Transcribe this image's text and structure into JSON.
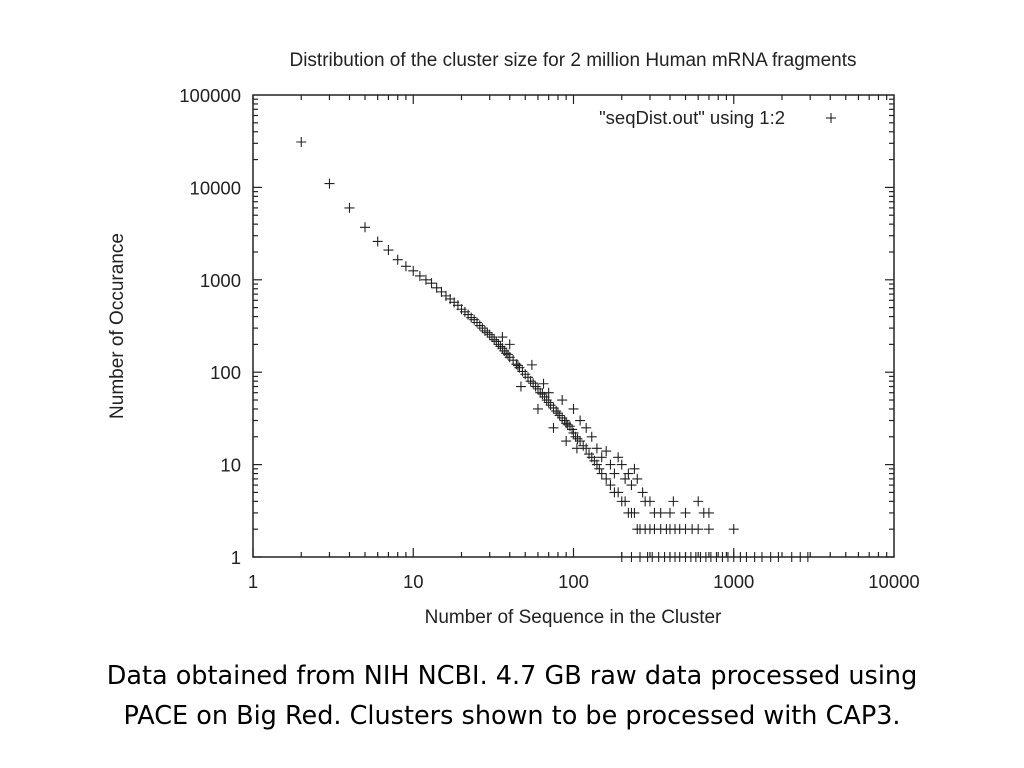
{
  "chart_data": {
    "type": "scatter",
    "title": "Distribution of the cluster size for 2 million Human mRNA fragments",
    "xlabel": "Number of Sequence in the Cluster",
    "ylabel": "Number of Occurance",
    "xscale": "log",
    "yscale": "log",
    "xlim": [
      1,
      10000
    ],
    "ylim": [
      1,
      100000
    ],
    "x_ticks": [
      "1",
      "10",
      "100",
      "1000",
      "10000"
    ],
    "y_ticks": [
      "1",
      "10",
      "100",
      "1000",
      "10000",
      "100000"
    ],
    "legend": "top-right",
    "grid": false,
    "marker": "+",
    "series": [
      {
        "name": "\"seqDist.out\" using 1:2",
        "points": [
          [
            2,
            31000
          ],
          [
            3,
            11000
          ],
          [
            4,
            6000
          ],
          [
            5,
            3700
          ],
          [
            6,
            2600
          ],
          [
            7,
            2100
          ],
          [
            8,
            1650
          ],
          [
            9,
            1400
          ],
          [
            10,
            1250
          ],
          [
            11,
            1100
          ],
          [
            12,
            1000
          ],
          [
            13,
            920
          ],
          [
            14,
            820
          ],
          [
            15,
            740
          ],
          [
            16,
            670
          ],
          [
            17,
            620
          ],
          [
            18,
            570
          ],
          [
            19,
            530
          ],
          [
            20,
            480
          ],
          [
            21,
            450
          ],
          [
            22,
            420
          ],
          [
            23,
            390
          ],
          [
            24,
            370
          ],
          [
            25,
            345
          ],
          [
            26,
            320
          ],
          [
            27,
            300
          ],
          [
            28,
            280
          ],
          [
            29,
            268
          ],
          [
            30,
            255
          ],
          [
            31,
            240
          ],
          [
            32,
            225
          ],
          [
            33,
            215
          ],
          [
            34,
            200
          ],
          [
            35,
            190
          ],
          [
            36,
            182
          ],
          [
            37,
            170
          ],
          [
            38,
            160
          ],
          [
            39,
            155
          ],
          [
            40,
            145
          ],
          [
            42,
            135
          ],
          [
            44,
            122
          ],
          [
            45,
            118
          ],
          [
            46,
            112
          ],
          [
            48,
            102
          ],
          [
            50,
            95
          ],
          [
            52,
            88
          ],
          [
            54,
            80
          ],
          [
            56,
            76
          ],
          [
            58,
            70
          ],
          [
            60,
            66
          ],
          [
            62,
            60
          ],
          [
            64,
            58
          ],
          [
            66,
            54
          ],
          [
            68,
            50
          ],
          [
            70,
            47
          ],
          [
            72,
            44
          ],
          [
            75,
            41
          ],
          [
            78,
            38
          ],
          [
            80,
            36
          ],
          [
            82,
            34
          ],
          [
            85,
            32
          ],
          [
            88,
            30
          ],
          [
            90,
            28
          ],
          [
            92,
            27
          ],
          [
            95,
            26
          ],
          [
            98,
            24
          ],
          [
            100,
            22
          ],
          [
            103,
            20
          ],
          [
            106,
            19
          ],
          [
            110,
            18
          ],
          [
            115,
            16
          ],
          [
            120,
            15
          ],
          [
            125,
            13
          ],
          [
            130,
            12
          ],
          [
            135,
            11
          ],
          [
            140,
            10
          ],
          [
            145,
            9
          ],
          [
            150,
            8
          ],
          [
            160,
            7
          ],
          [
            170,
            6
          ],
          [
            180,
            5
          ],
          [
            190,
            5
          ],
          [
            200,
            4
          ],
          [
            210,
            4
          ],
          [
            220,
            3
          ],
          [
            230,
            3
          ],
          [
            240,
            3
          ],
          [
            250,
            2
          ],
          [
            260,
            2
          ],
          [
            280,
            2
          ],
          [
            300,
            2
          ],
          [
            320,
            2
          ],
          [
            350,
            2
          ],
          [
            380,
            2
          ],
          [
            400,
            2
          ],
          [
            430,
            2
          ],
          [
            460,
            2
          ],
          [
            500,
            2
          ],
          [
            550,
            2
          ],
          [
            600,
            2
          ],
          [
            700,
            2
          ],
          [
            1000,
            2
          ],
          [
            36,
            240
          ],
          [
            40,
            200
          ],
          [
            47,
            70
          ],
          [
            55,
            120
          ],
          [
            60,
            40
          ],
          [
            65,
            75
          ],
          [
            70,
            60
          ],
          [
            75,
            25
          ],
          [
            85,
            50
          ],
          [
            90,
            18
          ],
          [
            100,
            40
          ],
          [
            105,
            15
          ],
          [
            110,
            30
          ],
          [
            120,
            25
          ],
          [
            130,
            20
          ],
          [
            140,
            15
          ],
          [
            150,
            12
          ],
          [
            160,
            14
          ],
          [
            170,
            10
          ],
          [
            180,
            8
          ],
          [
            190,
            12
          ],
          [
            200,
            10
          ],
          [
            210,
            7
          ],
          [
            220,
            8
          ],
          [
            230,
            6
          ],
          [
            240,
            9
          ],
          [
            250,
            7
          ],
          [
            270,
            5
          ],
          [
            280,
            4
          ],
          [
            300,
            4
          ],
          [
            320,
            3
          ],
          [
            350,
            3
          ],
          [
            400,
            3
          ],
          [
            420,
            4
          ],
          [
            500,
            3
          ],
          [
            600,
            4
          ],
          [
            650,
            3
          ],
          [
            700,
            3
          ],
          [
            200,
            1
          ],
          [
            230,
            1
          ],
          [
            260,
            1
          ],
          [
            290,
            1
          ],
          [
            310,
            1
          ],
          [
            340,
            1
          ],
          [
            370,
            1
          ],
          [
            400,
            1
          ],
          [
            430,
            1
          ],
          [
            460,
            1
          ],
          [
            500,
            1
          ],
          [
            540,
            1
          ],
          [
            580,
            1
          ],
          [
            620,
            1
          ],
          [
            670,
            1
          ],
          [
            720,
            1
          ],
          [
            780,
            1
          ],
          [
            850,
            1
          ],
          [
            920,
            1
          ],
          [
            1000,
            1
          ],
          [
            1100,
            1
          ],
          [
            1200,
            1
          ],
          [
            1350,
            1
          ],
          [
            1500,
            1
          ],
          [
            1700,
            1
          ],
          [
            1900,
            1
          ],
          [
            2300,
            1
          ],
          [
            2600,
            1
          ],
          [
            2900,
            1
          ]
        ]
      }
    ]
  },
  "caption": {
    "line1": "Data obtained from NIH NCBI. 4.7 GB raw data processed using",
    "line2": "PACE on Big Red.  Clusters shown to be processed with CAP3."
  }
}
